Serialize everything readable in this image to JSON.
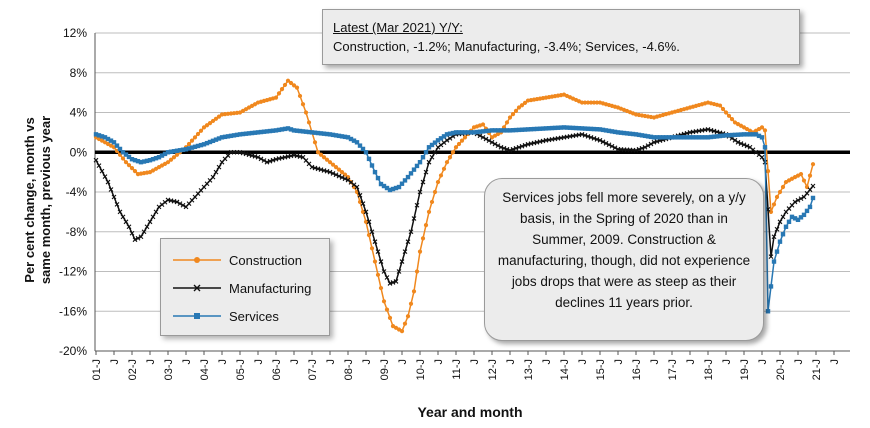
{
  "chart_data": {
    "type": "line",
    "title": "",
    "xlabel": "Year and month",
    "ylabel_line1": "Per cent change, month vs",
    "ylabel_line2": "same month, previous year",
    "ylim": [
      -20,
      12
    ],
    "y_ticks": [
      "12%",
      "8%",
      "4%",
      "0%",
      "-4%",
      "-8%",
      "-12%",
      "-16%",
      "-20%"
    ],
    "x_start_year": 2001,
    "x_end_month_index": 246,
    "x_tick_labels": [
      "01-J",
      "J",
      "02-J",
      "J",
      "03-J",
      "J",
      "04-J",
      "J",
      "05-J",
      "J",
      "06-J",
      "J",
      "07-J",
      "J",
      "08-J",
      "J",
      "09-J",
      "J",
      "10-J",
      "J",
      "11-J",
      "J",
      "12-J",
      "J",
      "13-J",
      "J",
      "14-J",
      "J",
      "15-J",
      "J",
      "16-J",
      "J",
      "17-J",
      "J",
      "18-J",
      "J",
      "19-J",
      "J",
      "20-J",
      "J",
      "21-J",
      "J"
    ],
    "series": [
      {
        "name": "Construction",
        "color": "#f0881e",
        "marker": "circle",
        "anchors": [
          [
            0,
            1.5
          ],
          [
            6,
            0.5
          ],
          [
            10,
            -1.0
          ],
          [
            14,
            -2.2
          ],
          [
            18,
            -2.0
          ],
          [
            24,
            -1.0
          ],
          [
            30,
            0.5
          ],
          [
            36,
            2.5
          ],
          [
            42,
            3.8
          ],
          [
            48,
            4.0
          ],
          [
            54,
            5.0
          ],
          [
            60,
            5.5
          ],
          [
            64,
            7.2
          ],
          [
            67,
            6.5
          ],
          [
            70,
            4.0
          ],
          [
            72,
            2.0
          ],
          [
            74,
            0.0
          ],
          [
            76,
            -0.5
          ],
          [
            80,
            -1.5
          ],
          [
            84,
            -2.5
          ],
          [
            87,
            -4.0
          ],
          [
            90,
            -7.0
          ],
          [
            93,
            -11.0
          ],
          [
            96,
            -15.0
          ],
          [
            99,
            -17.5
          ],
          [
            102,
            -18.0
          ],
          [
            104,
            -16.5
          ],
          [
            106,
            -14.0
          ],
          [
            108,
            -10.0
          ],
          [
            111,
            -6.0
          ],
          [
            114,
            -3.0
          ],
          [
            117,
            -1.0
          ],
          [
            120,
            0.5
          ],
          [
            123,
            1.5
          ],
          [
            126,
            2.5
          ],
          [
            129,
            2.8
          ],
          [
            132,
            1.5
          ],
          [
            135,
            2.0
          ],
          [
            138,
            3.5
          ],
          [
            141,
            4.5
          ],
          [
            144,
            5.2
          ],
          [
            150,
            5.5
          ],
          [
            156,
            5.8
          ],
          [
            162,
            5.0
          ],
          [
            168,
            5.0
          ],
          [
            174,
            4.5
          ],
          [
            180,
            3.8
          ],
          [
            186,
            3.5
          ],
          [
            192,
            4.0
          ],
          [
            198,
            4.5
          ],
          [
            204,
            5.0
          ],
          [
            208,
            4.7
          ],
          [
            210,
            4.0
          ],
          [
            213,
            3.0
          ],
          [
            216,
            2.5
          ],
          [
            219,
            2.0
          ],
          [
            222,
            2.5
          ],
          [
            223,
            2.2
          ],
          [
            225,
            -6.0
          ],
          [
            227,
            -4.5
          ],
          [
            230,
            -3.0
          ],
          [
            233,
            -2.5
          ],
          [
            235,
            -2.2
          ],
          [
            237,
            -3.5
          ],
          [
            239,
            -1.2
          ]
        ]
      },
      {
        "name": "Manufacturing",
        "color": "#111111",
        "marker": "x",
        "anchors": [
          [
            0,
            -0.8
          ],
          [
            4,
            -3.0
          ],
          [
            8,
            -6.0
          ],
          [
            11,
            -7.5
          ],
          [
            13,
            -8.8
          ],
          [
            15,
            -8.5
          ],
          [
            18,
            -7.0
          ],
          [
            21,
            -5.5
          ],
          [
            24,
            -4.8
          ],
          [
            27,
            -5.0
          ],
          [
            30,
            -5.5
          ],
          [
            33,
            -4.5
          ],
          [
            36,
            -3.5
          ],
          [
            39,
            -2.5
          ],
          [
            42,
            -1.0
          ],
          [
            45,
            0.0
          ],
          [
            48,
            0.0
          ],
          [
            54,
            -0.5
          ],
          [
            57,
            -1.0
          ],
          [
            60,
            -0.7
          ],
          [
            66,
            -0.3
          ],
          [
            69,
            -0.5
          ],
          [
            72,
            -1.5
          ],
          [
            78,
            -2.0
          ],
          [
            84,
            -2.8
          ],
          [
            87,
            -3.5
          ],
          [
            90,
            -6.0
          ],
          [
            93,
            -9.0
          ],
          [
            96,
            -12.0
          ],
          [
            98,
            -13.2
          ],
          [
            100,
            -13.0
          ],
          [
            102,
            -11.0
          ],
          [
            105,
            -8.0
          ],
          [
            108,
            -4.0
          ],
          [
            111,
            -1.0
          ],
          [
            114,
            0.5
          ],
          [
            117,
            1.2
          ],
          [
            120,
            1.8
          ],
          [
            126,
            2.0
          ],
          [
            129,
            1.5
          ],
          [
            132,
            1.0
          ],
          [
            135,
            0.5
          ],
          [
            138,
            0.2
          ],
          [
            141,
            0.5
          ],
          [
            144,
            0.8
          ],
          [
            150,
            1.2
          ],
          [
            156,
            1.5
          ],
          [
            162,
            1.8
          ],
          [
            168,
            1.2
          ],
          [
            174,
            0.3
          ],
          [
            180,
            0.2
          ],
          [
            183,
            0.5
          ],
          [
            186,
            1.0
          ],
          [
            192,
            1.5
          ],
          [
            198,
            2.0
          ],
          [
            204,
            2.3
          ],
          [
            210,
            1.8
          ],
          [
            214,
            1.0
          ],
          [
            218,
            0.5
          ],
          [
            222,
            -0.5
          ],
          [
            223,
            -1.0
          ],
          [
            225,
            -10.5
          ],
          [
            226,
            -8.5
          ],
          [
            228,
            -7.0
          ],
          [
            230,
            -6.0
          ],
          [
            233,
            -5.0
          ],
          [
            236,
            -4.5
          ],
          [
            239,
            -3.4
          ]
        ]
      },
      {
        "name": "Services",
        "color": "#2878b4",
        "marker": "square",
        "anchors": [
          [
            0,
            1.8
          ],
          [
            3,
            1.5
          ],
          [
            6,
            1.0
          ],
          [
            9,
            0.0
          ],
          [
            12,
            -0.7
          ],
          [
            15,
            -1.0
          ],
          [
            18,
            -0.8
          ],
          [
            21,
            -0.5
          ],
          [
            24,
            0.0
          ],
          [
            30,
            0.3
          ],
          [
            36,
            0.8
          ],
          [
            42,
            1.5
          ],
          [
            48,
            1.8
          ],
          [
            54,
            2.0
          ],
          [
            60,
            2.2
          ],
          [
            64,
            2.4
          ],
          [
            66,
            2.2
          ],
          [
            72,
            2.0
          ],
          [
            78,
            1.8
          ],
          [
            84,
            1.5
          ],
          [
            87,
            1.0
          ],
          [
            90,
            0.0
          ],
          [
            93,
            -2.0
          ],
          [
            95,
            -3.2
          ],
          [
            98,
            -3.8
          ],
          [
            101,
            -3.5
          ],
          [
            104,
            -2.5
          ],
          [
            108,
            -1.0
          ],
          [
            111,
            0.5
          ],
          [
            114,
            1.2
          ],
          [
            117,
            1.8
          ],
          [
            120,
            2.0
          ],
          [
            126,
            2.0
          ],
          [
            132,
            2.2
          ],
          [
            138,
            2.2
          ],
          [
            144,
            2.3
          ],
          [
            150,
            2.4
          ],
          [
            156,
            2.5
          ],
          [
            162,
            2.4
          ],
          [
            168,
            2.3
          ],
          [
            174,
            2.0
          ],
          [
            180,
            1.8
          ],
          [
            186,
            1.5
          ],
          [
            192,
            1.5
          ],
          [
            198,
            1.5
          ],
          [
            204,
            1.5
          ],
          [
            210,
            1.7
          ],
          [
            216,
            1.8
          ],
          [
            220,
            1.8
          ],
          [
            222,
            1.5
          ],
          [
            223,
            0.5
          ],
          [
            224,
            -16.0
          ],
          [
            225,
            -13.5
          ],
          [
            226,
            -11.0
          ],
          [
            228,
            -9.0
          ],
          [
            230,
            -7.5
          ],
          [
            232,
            -6.5
          ],
          [
            234,
            -6.8
          ],
          [
            236,
            -6.3
          ],
          [
            238,
            -5.5
          ],
          [
            239,
            -4.6
          ]
        ]
      }
    ],
    "annotations": {
      "latest_title": "Latest (Mar 2021) Y/Y:",
      "latest_values": "Construction, -1.2%; Manufacturing, -3.4%; Services, -4.6%.",
      "note": "Services jobs fell more severely, on a y/y basis, in the Spring of 2020 than in Summer, 2009. Construction & manufacturing, though, did not experience jobs drops that were as steep as their declines 11 years prior."
    },
    "legend_position": "left-bottom"
  }
}
